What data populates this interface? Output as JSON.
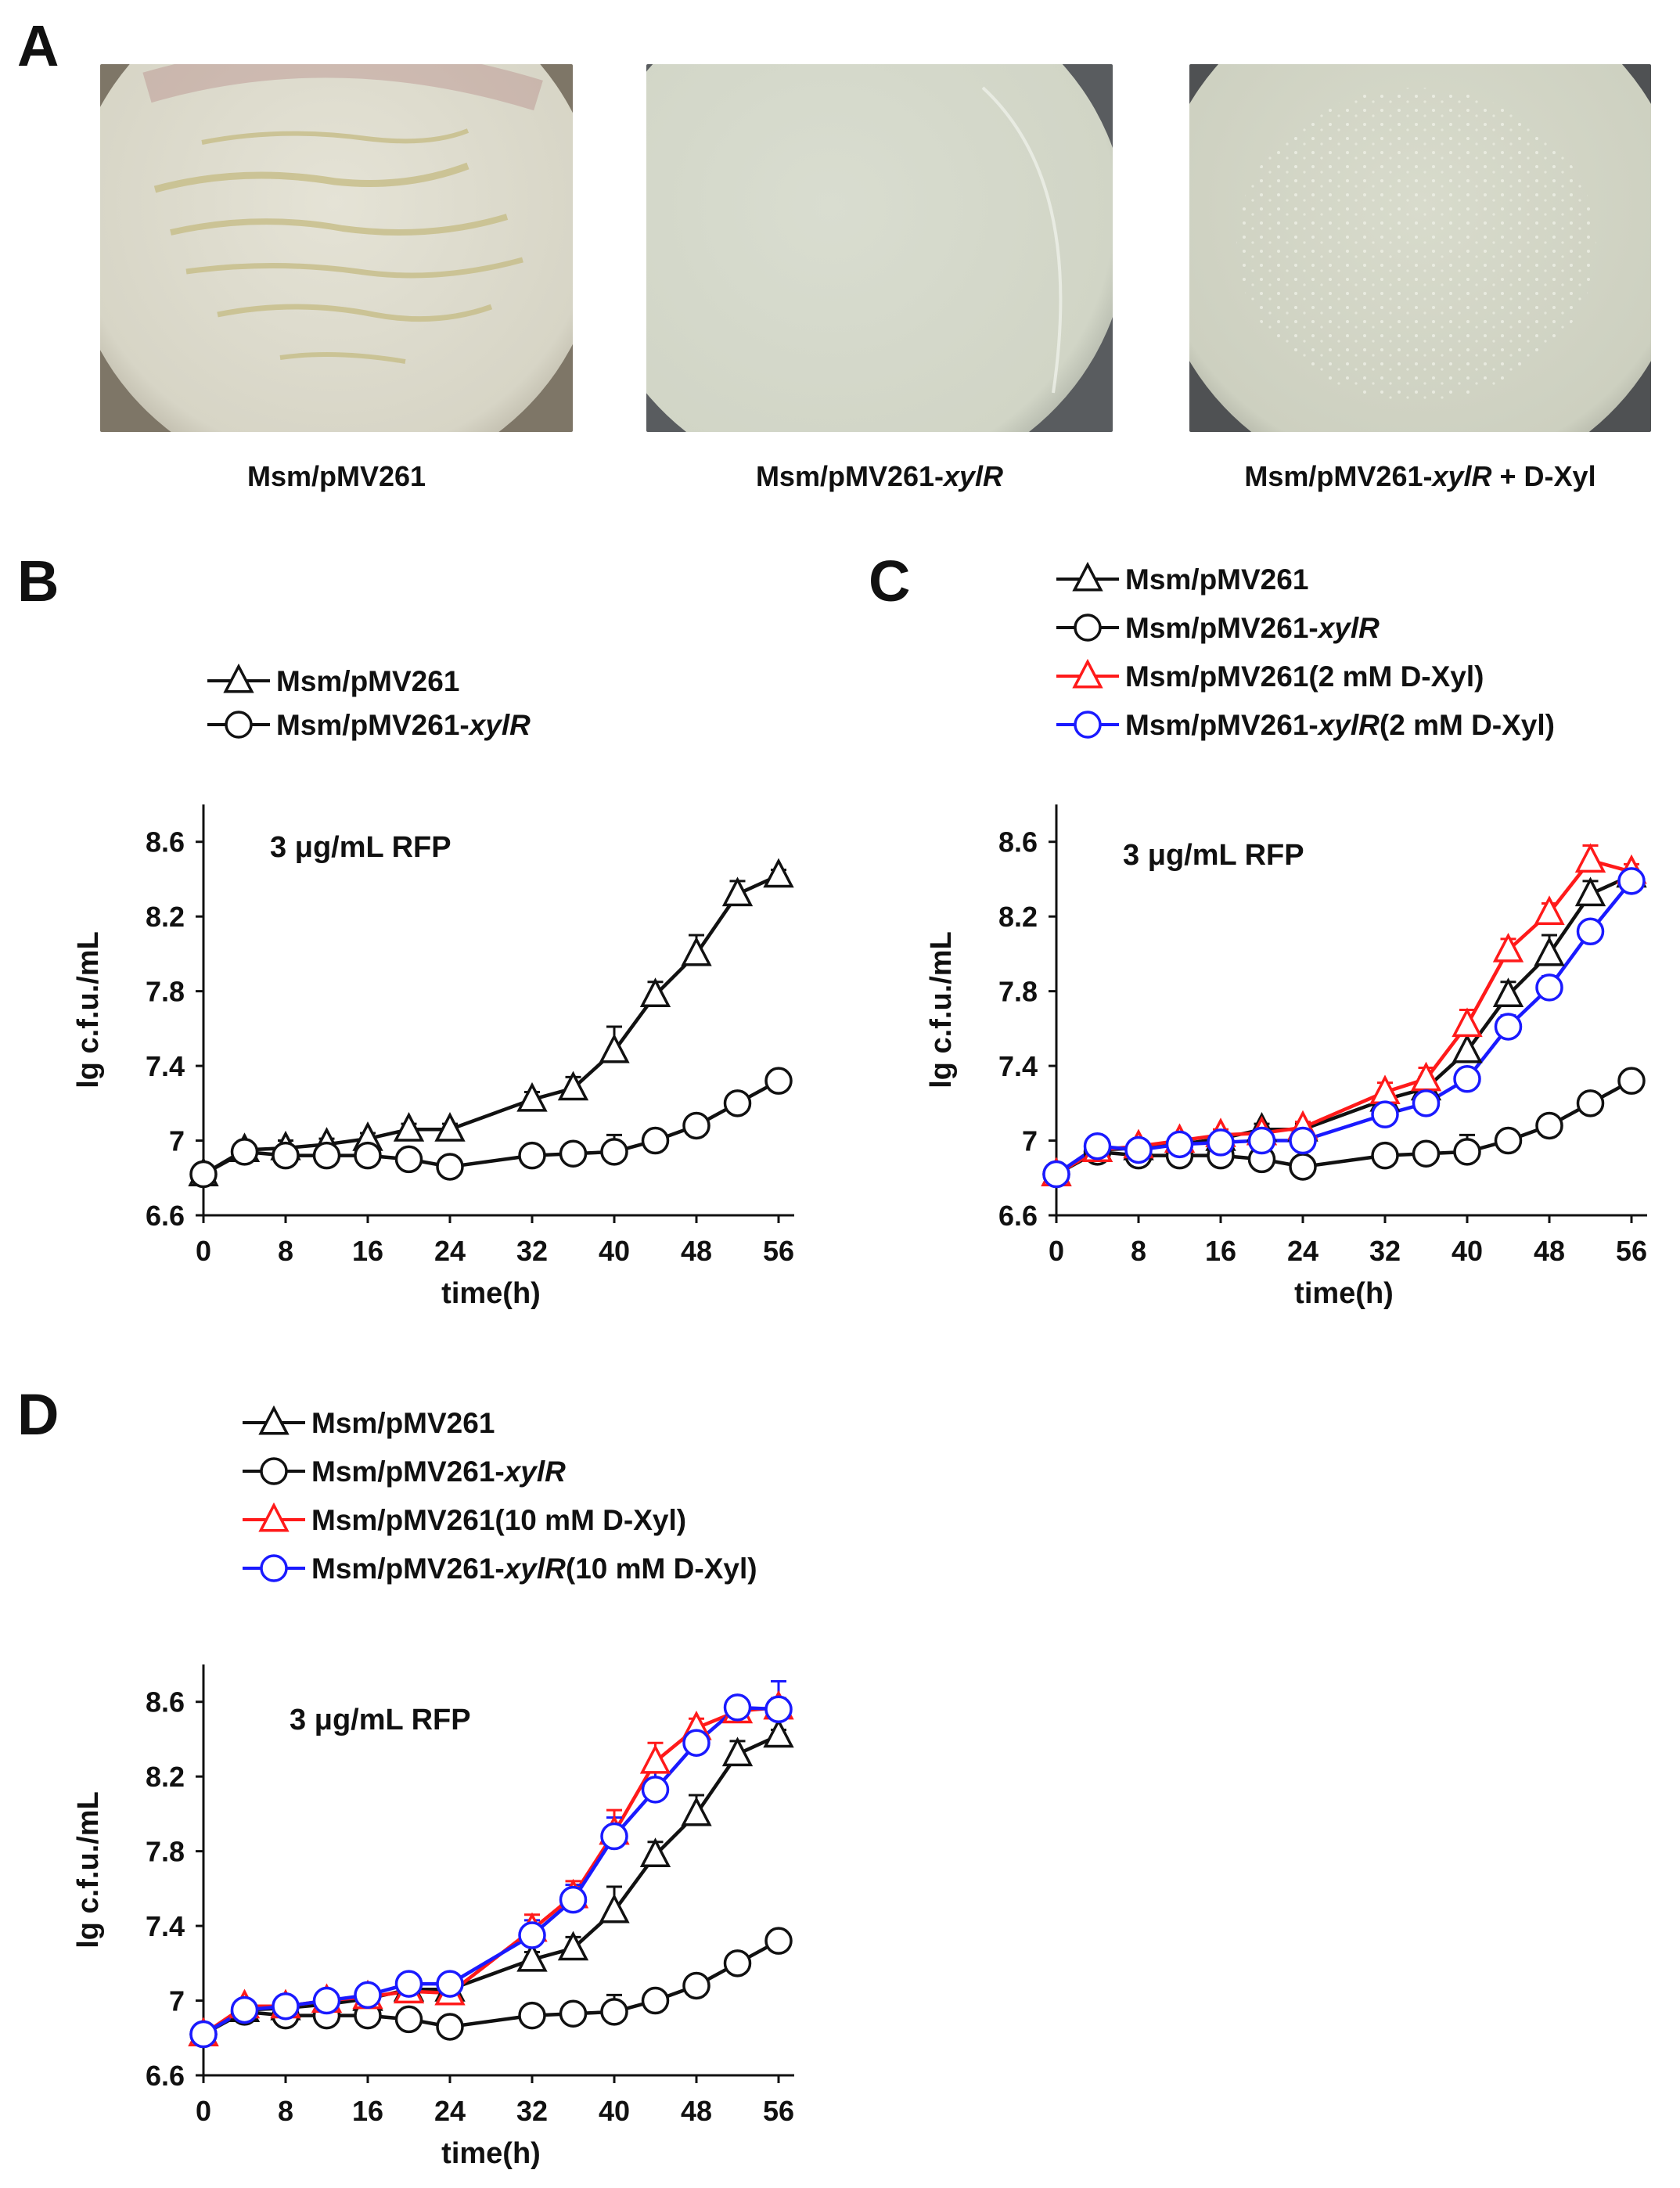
{
  "panel_labels": {
    "a": "A",
    "b": "B",
    "c": "C",
    "d": "D"
  },
  "plates": [
    {
      "caption": "Msm/pMV261",
      "caption_italic": "",
      "caption_suffix": "",
      "image": "agar-plate-dense-colonies"
    },
    {
      "caption": "Msm/pMV261-",
      "caption_italic": "xylR",
      "caption_suffix": "",
      "image": "agar-plate-no-colonies"
    },
    {
      "caption": "Msm/pMV261-",
      "caption_italic": "xylR",
      "caption_suffix": " + D-Xyl",
      "image": "agar-plate-sparse-colonies"
    }
  ],
  "colors": {
    "black": "#111111",
    "red": "#ff1a1a",
    "blue": "#1a1aff"
  },
  "chart_data": [
    {
      "id": "B",
      "type": "line",
      "xlabel": "time(h)",
      "ylabel": "lg c.f.u./mL",
      "annotation": "3 μg/mL RFP",
      "xlim": [
        0,
        56
      ],
      "ylim": [
        6.6,
        8.8
      ],
      "xticks": [
        0,
        8,
        16,
        24,
        32,
        40,
        48,
        56
      ],
      "yticks": [
        6.6,
        7,
        7.4,
        7.8,
        8.2,
        8.6
      ],
      "ytick_labels": [
        "6.6",
        "7",
        "7.4",
        "7.8",
        "8.2",
        "8.6"
      ],
      "series": [
        {
          "name": "Msm/pMV261",
          "name_italic": "",
          "name_suffix": "",
          "marker": "triangle",
          "color": "#111111",
          "x": [
            0,
            4,
            8,
            12,
            16,
            20,
            24,
            32,
            36,
            40,
            44,
            48,
            52,
            56
          ],
          "values": [
            6.82,
            6.95,
            6.96,
            6.98,
            7.01,
            7.06,
            7.06,
            7.22,
            7.28,
            7.48,
            7.78,
            8.0,
            8.32,
            8.42
          ],
          "errors": [
            0.02,
            0.03,
            0.04,
            0.03,
            0.03,
            0.03,
            0.03,
            0.04,
            0.06,
            0.13,
            0.07,
            0.1,
            0.07,
            0.03
          ]
        },
        {
          "name": "Msm/pMV261-",
          "name_italic": "xylR",
          "name_suffix": "",
          "marker": "circle",
          "color": "#111111",
          "x": [
            0,
            4,
            8,
            12,
            16,
            20,
            24,
            32,
            36,
            40,
            44,
            48,
            52,
            56
          ],
          "values": [
            6.82,
            6.94,
            6.92,
            6.92,
            6.92,
            6.9,
            6.86,
            6.92,
            6.93,
            6.94,
            7.0,
            7.08,
            7.2,
            7.32
          ],
          "errors": [
            0.02,
            0.02,
            0.05,
            0.03,
            0.03,
            0.03,
            0.03,
            0.03,
            0.03,
            0.09,
            0.03,
            0.03,
            0.03,
            0.03
          ]
        }
      ]
    },
    {
      "id": "C",
      "type": "line",
      "xlabel": "time(h)",
      "ylabel": "lg c.f.u./mL",
      "annotation": "3 μg/mL RFP",
      "xlim": [
        0,
        56
      ],
      "ylim": [
        6.6,
        8.8
      ],
      "xticks": [
        0,
        8,
        16,
        24,
        32,
        40,
        48,
        56
      ],
      "yticks": [
        6.6,
        7,
        7.4,
        7.8,
        8.2,
        8.6
      ],
      "ytick_labels": [
        "6.6",
        "7",
        "7.4",
        "7.8",
        "8.2",
        "8.6"
      ],
      "series": [
        {
          "name": "Msm/pMV261",
          "name_italic": "",
          "name_suffix": "",
          "marker": "triangle",
          "color": "#111111",
          "x": [
            0,
            4,
            8,
            12,
            16,
            20,
            24,
            32,
            36,
            40,
            44,
            48,
            52,
            56
          ],
          "values": [
            6.82,
            6.95,
            6.96,
            6.98,
            7.01,
            7.06,
            7.06,
            7.22,
            7.28,
            7.48,
            7.78,
            8.0,
            8.32,
            8.42
          ],
          "errors": [
            0.02,
            0.03,
            0.04,
            0.03,
            0.03,
            0.03,
            0.03,
            0.04,
            0.06,
            0.13,
            0.07,
            0.1,
            0.07,
            0.03
          ]
        },
        {
          "name": "Msm/pMV261-",
          "name_italic": "xylR",
          "name_suffix": "",
          "marker": "circle",
          "color": "#111111",
          "x": [
            0,
            4,
            8,
            12,
            16,
            20,
            24,
            32,
            36,
            40,
            44,
            48,
            52,
            56
          ],
          "values": [
            6.82,
            6.94,
            6.92,
            6.92,
            6.92,
            6.9,
            6.86,
            6.92,
            6.93,
            6.94,
            7.0,
            7.08,
            7.2,
            7.32
          ],
          "errors": [
            0.02,
            0.02,
            0.05,
            0.03,
            0.03,
            0.03,
            0.03,
            0.03,
            0.03,
            0.09,
            0.03,
            0.03,
            0.03,
            0.03
          ]
        },
        {
          "name": "Msm/pMV261(2 mM D-Xyl)",
          "name_italic": "",
          "name_suffix": "",
          "marker": "triangle",
          "color": "#ff1a1a",
          "x": [
            0,
            4,
            8,
            12,
            16,
            20,
            24,
            32,
            36,
            40,
            44,
            48,
            52,
            56
          ],
          "values": [
            6.82,
            6.95,
            6.97,
            7.0,
            7.03,
            7.04,
            7.07,
            7.26,
            7.33,
            7.62,
            8.02,
            8.22,
            8.5,
            8.44
          ],
          "errors": [
            0.02,
            0.02,
            0.03,
            0.03,
            0.03,
            0.03,
            0.03,
            0.05,
            0.06,
            0.08,
            0.06,
            0.05,
            0.08,
            0.04
          ]
        },
        {
          "name": "Msm/pMV261-",
          "name_italic": "xylR",
          "name_suffix": "(2 mM D-Xyl)",
          "marker": "circle",
          "color": "#1a1aff",
          "x": [
            0,
            4,
            8,
            12,
            16,
            20,
            24,
            32,
            36,
            40,
            44,
            48,
            52,
            56
          ],
          "values": [
            6.82,
            6.97,
            6.95,
            6.98,
            6.99,
            7.0,
            7.0,
            7.14,
            7.2,
            7.33,
            7.61,
            7.82,
            8.12,
            8.39
          ],
          "errors": [
            0.02,
            0.02,
            0.03,
            0.03,
            0.03,
            0.03,
            0.03,
            0.04,
            0.04,
            0.05,
            0.06,
            0.06,
            0.05,
            0.05
          ]
        }
      ]
    },
    {
      "id": "D",
      "type": "line",
      "xlabel": "time(h)",
      "ylabel": "lg c.f.u./mL",
      "annotation": "3 μg/mL RFP",
      "xlim": [
        0,
        56
      ],
      "ylim": [
        6.6,
        8.8
      ],
      "xticks": [
        0,
        8,
        16,
        24,
        32,
        40,
        48,
        56
      ],
      "yticks": [
        6.6,
        7,
        7.4,
        7.8,
        8.2,
        8.6
      ],
      "ytick_labels": [
        "6.6",
        "7",
        "7.4",
        "7.8",
        "8.2",
        "8.6"
      ],
      "series": [
        {
          "name": "Msm/pMV261",
          "name_italic": "",
          "name_suffix": "",
          "marker": "triangle",
          "color": "#111111",
          "x": [
            0,
            4,
            8,
            12,
            16,
            20,
            24,
            32,
            36,
            40,
            44,
            48,
            52,
            56
          ],
          "values": [
            6.82,
            6.95,
            6.96,
            6.98,
            7.01,
            7.06,
            7.06,
            7.22,
            7.28,
            7.48,
            7.78,
            8.0,
            8.32,
            8.42
          ],
          "errors": [
            0.02,
            0.03,
            0.04,
            0.03,
            0.03,
            0.03,
            0.03,
            0.04,
            0.06,
            0.13,
            0.07,
            0.1,
            0.07,
            0.03
          ]
        },
        {
          "name": "Msm/pMV261-",
          "name_italic": "xylR",
          "name_suffix": "",
          "marker": "circle",
          "color": "#111111",
          "x": [
            0,
            4,
            8,
            12,
            16,
            20,
            24,
            32,
            36,
            40,
            44,
            48,
            52,
            56
          ],
          "values": [
            6.82,
            6.94,
            6.92,
            6.92,
            6.92,
            6.9,
            6.86,
            6.92,
            6.93,
            6.94,
            7.0,
            7.08,
            7.2,
            7.32
          ],
          "errors": [
            0.02,
            0.02,
            0.05,
            0.03,
            0.03,
            0.03,
            0.03,
            0.03,
            0.03,
            0.09,
            0.03,
            0.03,
            0.03,
            0.03
          ]
        },
        {
          "name": "Msm/pMV261(10 mM D-Xyl)",
          "name_italic": "",
          "name_suffix": "",
          "marker": "triangle",
          "color": "#ff1a1a",
          "x": [
            0,
            4,
            8,
            12,
            16,
            20,
            24,
            32,
            36,
            40,
            44,
            48,
            52,
            56
          ],
          "values": [
            6.82,
            6.97,
            6.97,
            7.0,
            7.02,
            7.05,
            7.04,
            7.38,
            7.56,
            7.9,
            8.28,
            8.46,
            8.55,
            8.57
          ],
          "errors": [
            0.02,
            0.02,
            0.03,
            0.03,
            0.03,
            0.03,
            0.03,
            0.08,
            0.08,
            0.12,
            0.1,
            0.05,
            0.05,
            0.05
          ]
        },
        {
          "name": "Msm/pMV261-",
          "name_italic": "xylR",
          "name_suffix": "(10 mM D-Xyl)",
          "marker": "circle",
          "color": "#1a1aff",
          "x": [
            0,
            4,
            8,
            12,
            16,
            20,
            24,
            32,
            36,
            40,
            44,
            48,
            52,
            56
          ],
          "values": [
            6.82,
            6.95,
            6.97,
            7.0,
            7.03,
            7.09,
            7.09,
            7.35,
            7.54,
            7.88,
            8.13,
            8.38,
            8.57,
            8.56
          ],
          "errors": [
            0.02,
            0.02,
            0.03,
            0.03,
            0.03,
            0.03,
            0.03,
            0.08,
            0.08,
            0.1,
            0.1,
            0.05,
            0.05,
            0.15
          ]
        }
      ]
    }
  ]
}
